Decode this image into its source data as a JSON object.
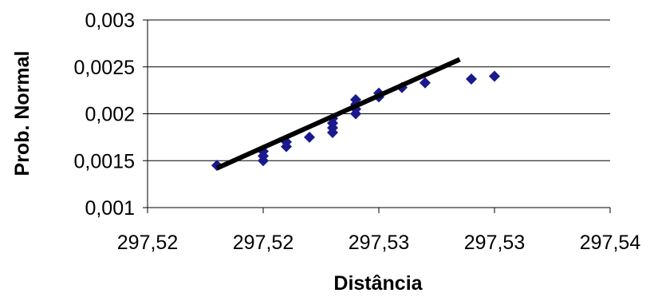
{
  "chart_data": {
    "type": "scatter",
    "title": "",
    "xlabel": "Distância",
    "ylabel": "Prob. Normal",
    "x_tick_labels": [
      "297,52",
      "297,52",
      "297,53",
      "297,53",
      "297,54"
    ],
    "y_tick_labels": [
      "0,001",
      "0,0015",
      "0,002",
      "0,0025",
      "0,003"
    ],
    "xlim": [
      297.5175,
      297.5375
    ],
    "ylim": [
      0.001,
      0.003
    ],
    "y_ticks": [
      0.001,
      0.0015,
      0.002,
      0.0025,
      0.003
    ],
    "x_ticks": [
      297.5175,
      297.5225,
      297.5275,
      297.5325,
      297.5375
    ],
    "grid": "horizontal",
    "legend": "none",
    "series": [
      {
        "type": "scatter",
        "color": "#1a1a8c",
        "marker": "diamond",
        "points": [
          {
            "x": 297.5205,
            "y": 0.00145
          },
          {
            "x": 297.5225,
            "y": 0.0015
          },
          {
            "x": 297.5225,
            "y": 0.00155
          },
          {
            "x": 297.5225,
            "y": 0.0016
          },
          {
            "x": 297.5235,
            "y": 0.00165
          },
          {
            "x": 297.5235,
            "y": 0.0017
          },
          {
            "x": 297.5245,
            "y": 0.00175
          },
          {
            "x": 297.5255,
            "y": 0.0018
          },
          {
            "x": 297.5255,
            "y": 0.00185
          },
          {
            "x": 297.5255,
            "y": 0.0019
          },
          {
            "x": 297.5255,
            "y": 0.00195
          },
          {
            "x": 297.5265,
            "y": 0.002
          },
          {
            "x": 297.5265,
            "y": 0.00205
          },
          {
            "x": 297.5265,
            "y": 0.0021
          },
          {
            "x": 297.5265,
            "y": 0.00215
          },
          {
            "x": 297.5275,
            "y": 0.00218
          },
          {
            "x": 297.5275,
            "y": 0.00222
          },
          {
            "x": 297.5285,
            "y": 0.00228
          },
          {
            "x": 297.5295,
            "y": 0.00233
          },
          {
            "x": 297.5315,
            "y": 0.00237
          },
          {
            "x": 297.5325,
            "y": 0.0024
          }
        ]
      },
      {
        "type": "line",
        "color": "#000000",
        "points": [
          {
            "x": 297.5205,
            "y": 0.00142
          },
          {
            "x": 297.531,
            "y": 0.00258
          }
        ]
      }
    ]
  }
}
